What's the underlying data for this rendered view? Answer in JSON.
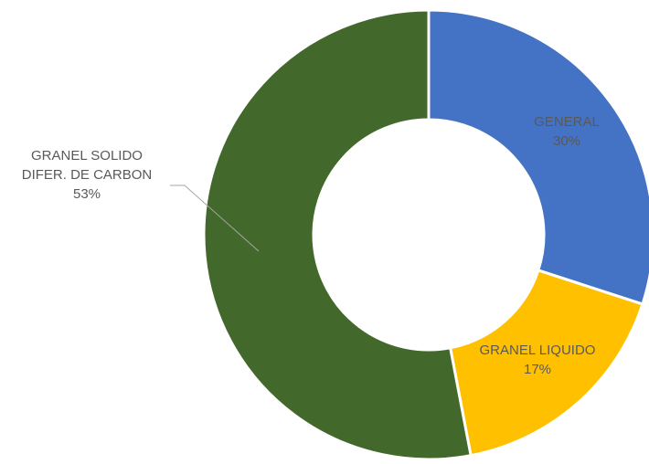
{
  "chart_data": {
    "type": "pie",
    "variant": "donut",
    "slices": [
      {
        "label_lines": [
          "GENERAL"
        ],
        "value": 30,
        "value_label": "30%",
        "color": "#4472C4"
      },
      {
        "label_lines": [
          "GRANEL LIQUIDO"
        ],
        "value": 17,
        "value_label": "17%",
        "color": "#FFC000"
      },
      {
        "label_lines": [
          "GRANEL SOLIDO",
          "DIFER. DE CARBON"
        ],
        "value": 53,
        "value_label": "53%",
        "color": "#43682B"
      }
    ],
    "start_angle_deg": 0,
    "direction": "clockwise",
    "separator_color": "#ffffff",
    "label_color": "#595959",
    "leader_line_color": "#A6A6A6",
    "legend": "none"
  }
}
